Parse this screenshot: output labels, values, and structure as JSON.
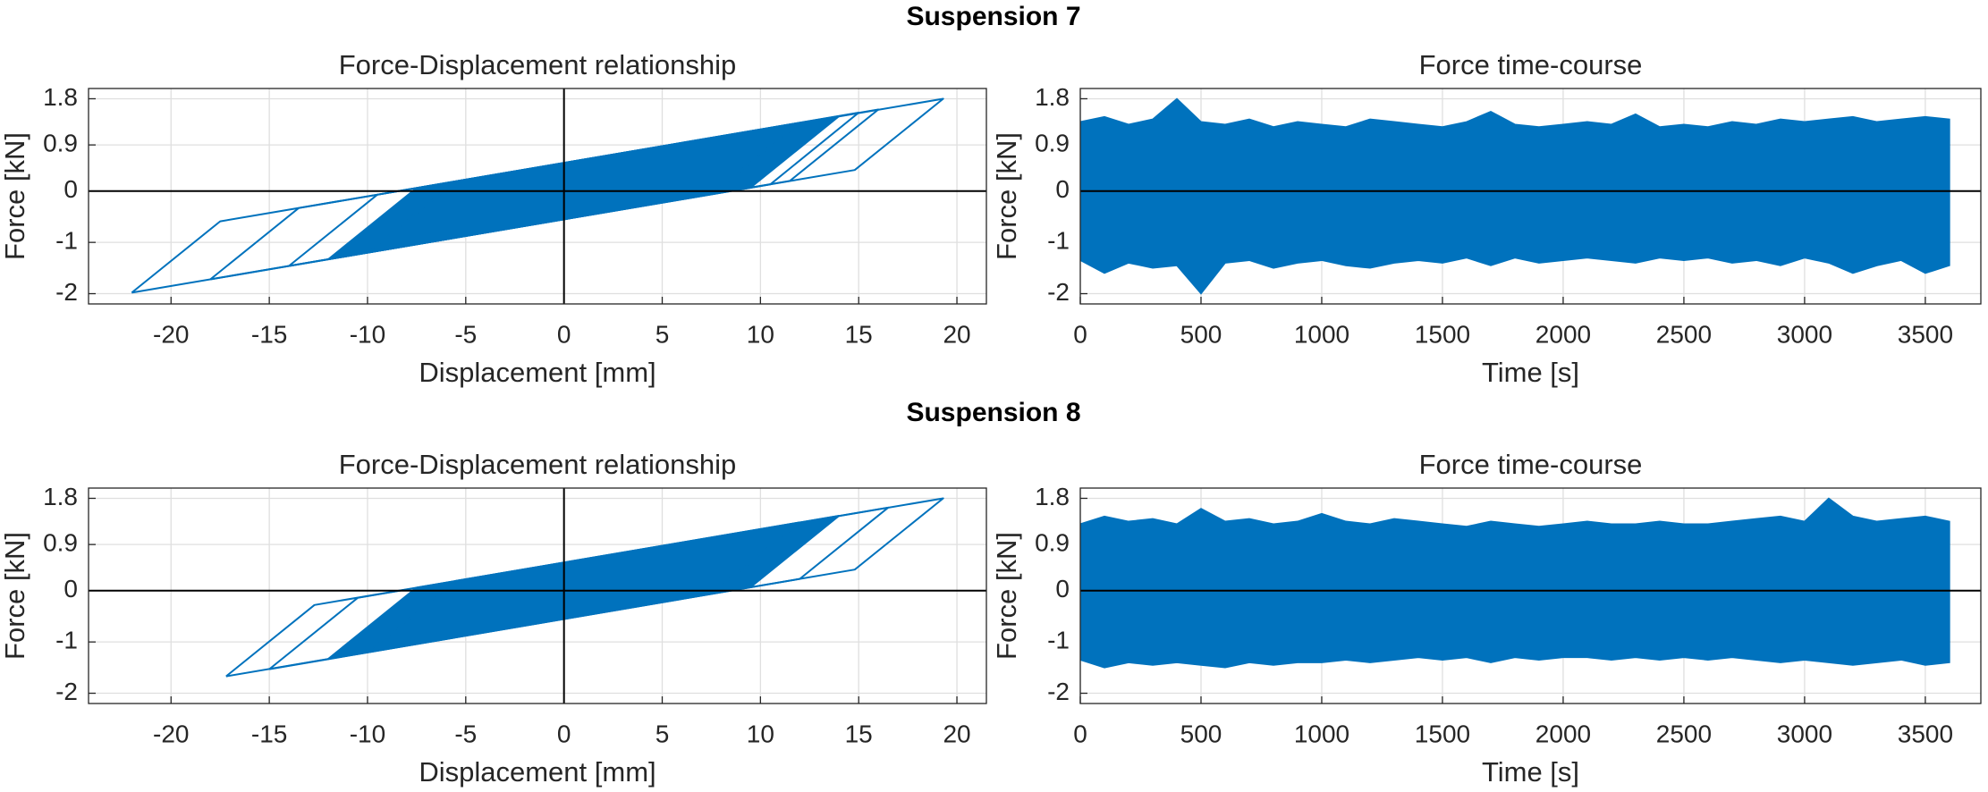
{
  "titles": [
    "Suspension 7",
    "Suspension 8"
  ],
  "chart_data": [
    {
      "type": "loops",
      "title": "Force-Displacement relationship",
      "x_label": "Displacement [mm]",
      "y_label": "Force [kN]",
      "xlim": [
        -24.2,
        21.5
      ],
      "ylim": [
        -2.2,
        2
      ],
      "xticks": [
        -20,
        -15,
        -10,
        -5,
        0,
        5,
        10,
        15,
        20
      ],
      "yticks": [
        -2,
        -1,
        0,
        0.9,
        1.8
      ],
      "grid": true,
      "zero_lines": [
        "x",
        "y"
      ],
      "color": "#0072bd",
      "series": [
        {
          "filled": false,
          "x": [
            -22,
            -17.5,
            19.3,
            14.8,
            -22
          ],
          "y": [
            -1.98,
            -0.59,
            1.8,
            0.41,
            -1.98
          ]
        },
        {
          "filled": false,
          "x": [
            -18,
            -13.5,
            16,
            11.5,
            -18
          ],
          "y": [
            -1.72,
            -0.33,
            1.59,
            0.2,
            -1.72
          ]
        },
        {
          "filled": false,
          "x": [
            -14,
            -9.5,
            15,
            10.5,
            -14
          ],
          "y": [
            -1.46,
            -0.07,
            1.53,
            0.13,
            -1.46
          ]
        },
        {
          "filled": true,
          "x": [
            -12,
            -7.5,
            14,
            9.5,
            -12
          ],
          "y": [
            -1.33,
            0.06,
            1.46,
            0.07,
            -1.33
          ]
        },
        {
          "filled": true,
          "x": [
            -10,
            -5.5,
            12,
            7.5,
            -10
          ],
          "y": [
            -1.2,
            0.19,
            1.33,
            -0.06,
            -1.2
          ]
        }
      ]
    },
    {
      "type": "area",
      "title": "Force time-course",
      "x_label": "Time [s]",
      "y_label": "Force [kN]",
      "xlim": [
        0,
        3730
      ],
      "ylim": [
        -2.2,
        2
      ],
      "xticks": [
        0,
        500,
        1000,
        1500,
        2000,
        2500,
        3000,
        3500
      ],
      "yticks": [
        -2,
        -1,
        0,
        0.9,
        1.8
      ],
      "grid": true,
      "zero_lines": [
        "y"
      ],
      "color": "#0072bd",
      "x": [
        0,
        100,
        200,
        300,
        400,
        500,
        600,
        700,
        800,
        900,
        1000,
        1100,
        1200,
        1300,
        1400,
        1500,
        1600,
        1700,
        1800,
        1900,
        2000,
        2100,
        2200,
        2300,
        2400,
        2500,
        2600,
        2700,
        2800,
        2900,
        3000,
        3100,
        3200,
        3300,
        3400,
        3500,
        3600
      ],
      "series": [
        {
          "values": [
            1.35,
            1.45,
            1.3,
            1.4,
            1.8,
            1.35,
            1.3,
            1.4,
            1.25,
            1.35,
            1.3,
            1.25,
            1.4,
            1.35,
            1.3,
            1.25,
            1.35,
            1.55,
            1.3,
            1.25,
            1.3,
            1.35,
            1.3,
            1.5,
            1.25,
            1.3,
            1.25,
            1.35,
            1.3,
            1.4,
            1.35,
            1.4,
            1.45,
            1.35,
            1.4,
            1.45,
            1.4
          ]
        },
        {
          "values": [
            -1.35,
            -1.6,
            -1.4,
            -1.5,
            -1.45,
            -2,
            -1.4,
            -1.35,
            -1.5,
            -1.4,
            -1.35,
            -1.45,
            -1.5,
            -1.4,
            -1.35,
            -1.4,
            -1.3,
            -1.45,
            -1.3,
            -1.4,
            -1.35,
            -1.3,
            -1.35,
            -1.4,
            -1.3,
            -1.35,
            -1.3,
            -1.4,
            -1.35,
            -1.45,
            -1.3,
            -1.4,
            -1.6,
            -1.45,
            -1.35,
            -1.6,
            -1.45
          ]
        }
      ]
    },
    {
      "type": "loops",
      "title": "Force-Displacement relationship",
      "x_label": "Displacement [mm]",
      "y_label": "Force [kN]",
      "xlim": [
        -24.2,
        21.5
      ],
      "ylim": [
        -2.2,
        2
      ],
      "xticks": [
        -20,
        -15,
        -10,
        -5,
        0,
        5,
        10,
        15,
        20
      ],
      "yticks": [
        -2,
        -1,
        0,
        0.9,
        1.8
      ],
      "grid": true,
      "zero_lines": [
        "x",
        "y"
      ],
      "color": "#0072bd",
      "series": [
        {
          "filled": false,
          "x": [
            -17.2,
            -12.7,
            19.3,
            14.8,
            -17.2
          ],
          "y": [
            -1.67,
            -0.28,
            1.8,
            0.41,
            -1.67
          ]
        },
        {
          "filled": false,
          "x": [
            -15,
            -10.5,
            16.5,
            12,
            -15
          ],
          "y": [
            -1.53,
            -0.14,
            1.62,
            0.23,
            -1.53
          ]
        },
        {
          "filled": true,
          "x": [
            -12,
            -7.5,
            14,
            9.5,
            -12
          ],
          "y": [
            -1.33,
            0.06,
            1.46,
            0.07,
            -1.33
          ]
        },
        {
          "filled": true,
          "x": [
            -10,
            -5.5,
            12,
            7.5,
            -10
          ],
          "y": [
            -1.2,
            0.19,
            1.33,
            -0.06,
            -1.2
          ]
        }
      ]
    },
    {
      "type": "area",
      "title": "Force time-course",
      "x_label": "Time [s]",
      "y_label": "Force [kN]",
      "xlim": [
        0,
        3730
      ],
      "ylim": [
        -2.2,
        2
      ],
      "xticks": [
        0,
        500,
        1000,
        1500,
        2000,
        2500,
        3000,
        3500
      ],
      "yticks": [
        -2,
        -1,
        0,
        0.9,
        1.8
      ],
      "grid": true,
      "zero_lines": [
        "y"
      ],
      "color": "#0072bd",
      "x": [
        0,
        100,
        200,
        300,
        400,
        500,
        600,
        700,
        800,
        900,
        1000,
        1100,
        1200,
        1300,
        1400,
        1500,
        1600,
        1700,
        1800,
        1900,
        2000,
        2100,
        2200,
        2300,
        2400,
        2500,
        2600,
        2700,
        2800,
        2900,
        3000,
        3100,
        3200,
        3300,
        3400,
        3500,
        3600
      ],
      "series": [
        {
          "values": [
            1.3,
            1.45,
            1.35,
            1.4,
            1.3,
            1.6,
            1.35,
            1.4,
            1.3,
            1.35,
            1.5,
            1.35,
            1.3,
            1.4,
            1.35,
            1.3,
            1.25,
            1.35,
            1.3,
            1.25,
            1.3,
            1.35,
            1.3,
            1.3,
            1.35,
            1.3,
            1.3,
            1.35,
            1.4,
            1.45,
            1.35,
            1.8,
            1.45,
            1.35,
            1.4,
            1.45,
            1.35
          ]
        },
        {
          "values": [
            -1.35,
            -1.5,
            -1.4,
            -1.45,
            -1.4,
            -1.45,
            -1.5,
            -1.4,
            -1.45,
            -1.4,
            -1.4,
            -1.35,
            -1.4,
            -1.35,
            -1.3,
            -1.35,
            -1.3,
            -1.4,
            -1.3,
            -1.35,
            -1.3,
            -1.3,
            -1.35,
            -1.3,
            -1.35,
            -1.3,
            -1.35,
            -1.3,
            -1.35,
            -1.4,
            -1.35,
            -1.4,
            -1.45,
            -1.4,
            -1.35,
            -1.45,
            -1.4
          ]
        }
      ]
    }
  ]
}
